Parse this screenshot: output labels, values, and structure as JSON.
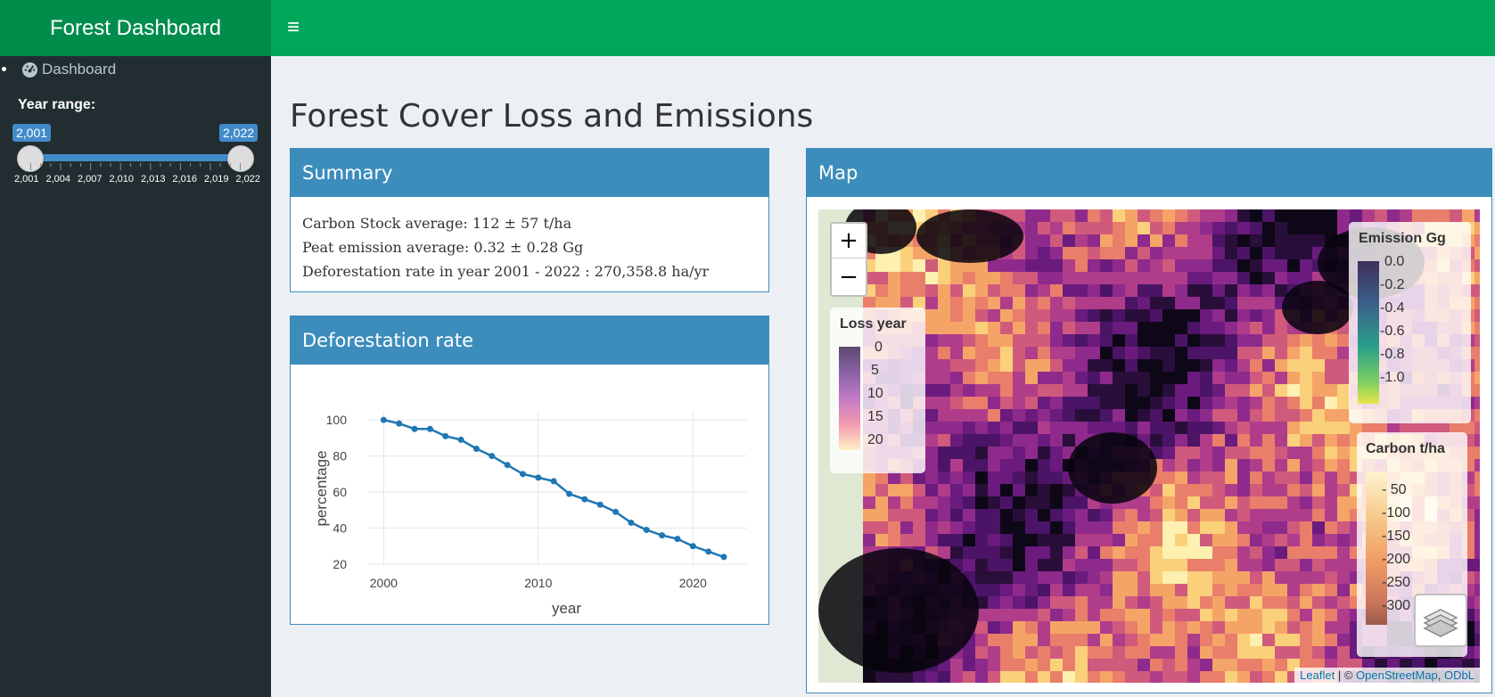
{
  "header": {
    "app_title": "Forest Dashboard",
    "menu_toggle": "≡"
  },
  "sidebar": {
    "items": [
      {
        "label": "Dashboard",
        "icon": "dashboard-icon"
      }
    ],
    "year_range": {
      "label": "Year range:",
      "min": 2001,
      "max": 2022,
      "from_label": "2,001",
      "to_label": "2,022",
      "ticks": [
        "2,001",
        "2,004",
        "2,007",
        "2,010",
        "2,013",
        "2,016",
        "2,019",
        "2,022"
      ]
    }
  },
  "page": {
    "title": "Forest Cover Loss and Emissions"
  },
  "summary": {
    "title": "Summary",
    "lines": [
      "Carbon Stock average: 112 ± 57 t/ha",
      "Peat emission average: 0.32 ± 0.28 Gg",
      "Deforestation rate in year 2001 - 2022 : 270,358.8 ha/yr"
    ]
  },
  "deforestation": {
    "title": "Deforestation rate"
  },
  "chart_data": {
    "type": "line",
    "title": "",
    "xlabel": "year",
    "ylabel": "percentage",
    "x": [
      2000,
      2001,
      2002,
      2003,
      2004,
      2005,
      2006,
      2007,
      2008,
      2009,
      2010,
      2011,
      2012,
      2013,
      2014,
      2015,
      2016,
      2017,
      2018,
      2019,
      2020,
      2021,
      2022
    ],
    "series": [
      {
        "values": [
          100,
          98,
          95,
          95,
          91,
          89,
          84,
          80,
          75,
          70,
          68,
          66,
          59,
          56,
          53,
          49,
          43,
          39,
          36,
          34,
          30,
          27,
          24
        ]
      }
    ],
    "xticks": [
      2000,
      2010,
      2020
    ],
    "yticks": [
      20,
      40,
      60,
      80,
      100
    ],
    "xlim": [
      1999,
      2023.5
    ],
    "ylim": [
      19,
      105
    ],
    "grid": true,
    "line_color": "#1f77b4"
  },
  "map": {
    "title": "Map",
    "zoom_in": "+",
    "zoom_out": "−",
    "legends": {
      "loss_year": {
        "title": "Loss year",
        "ticks": [
          "0",
          "5",
          "10",
          "15",
          "20"
        ]
      },
      "emission": {
        "title": "Emission Gg",
        "ticks": [
          "0.0",
          "-0.2",
          "-0.4",
          "-0.6",
          "-0.8",
          "-1.0"
        ]
      },
      "carbon": {
        "title": "Carbon t/ha",
        "ticks": [
          "- 50",
          "-100",
          "-150",
          "-200",
          "-250",
          "-300"
        ]
      }
    },
    "layers_icon": "layers-icon",
    "attribution": {
      "leaflet": "Leaflet",
      "sep": " | © ",
      "osm": "OpenStreetMap",
      "comma": ", ",
      "odbl": "ODbL"
    }
  },
  "colors": {
    "header_green": "#00a65a",
    "logo_green": "#008d4c",
    "sidebar_dark": "#222d32",
    "box_blue": "#3c8dbc"
  }
}
